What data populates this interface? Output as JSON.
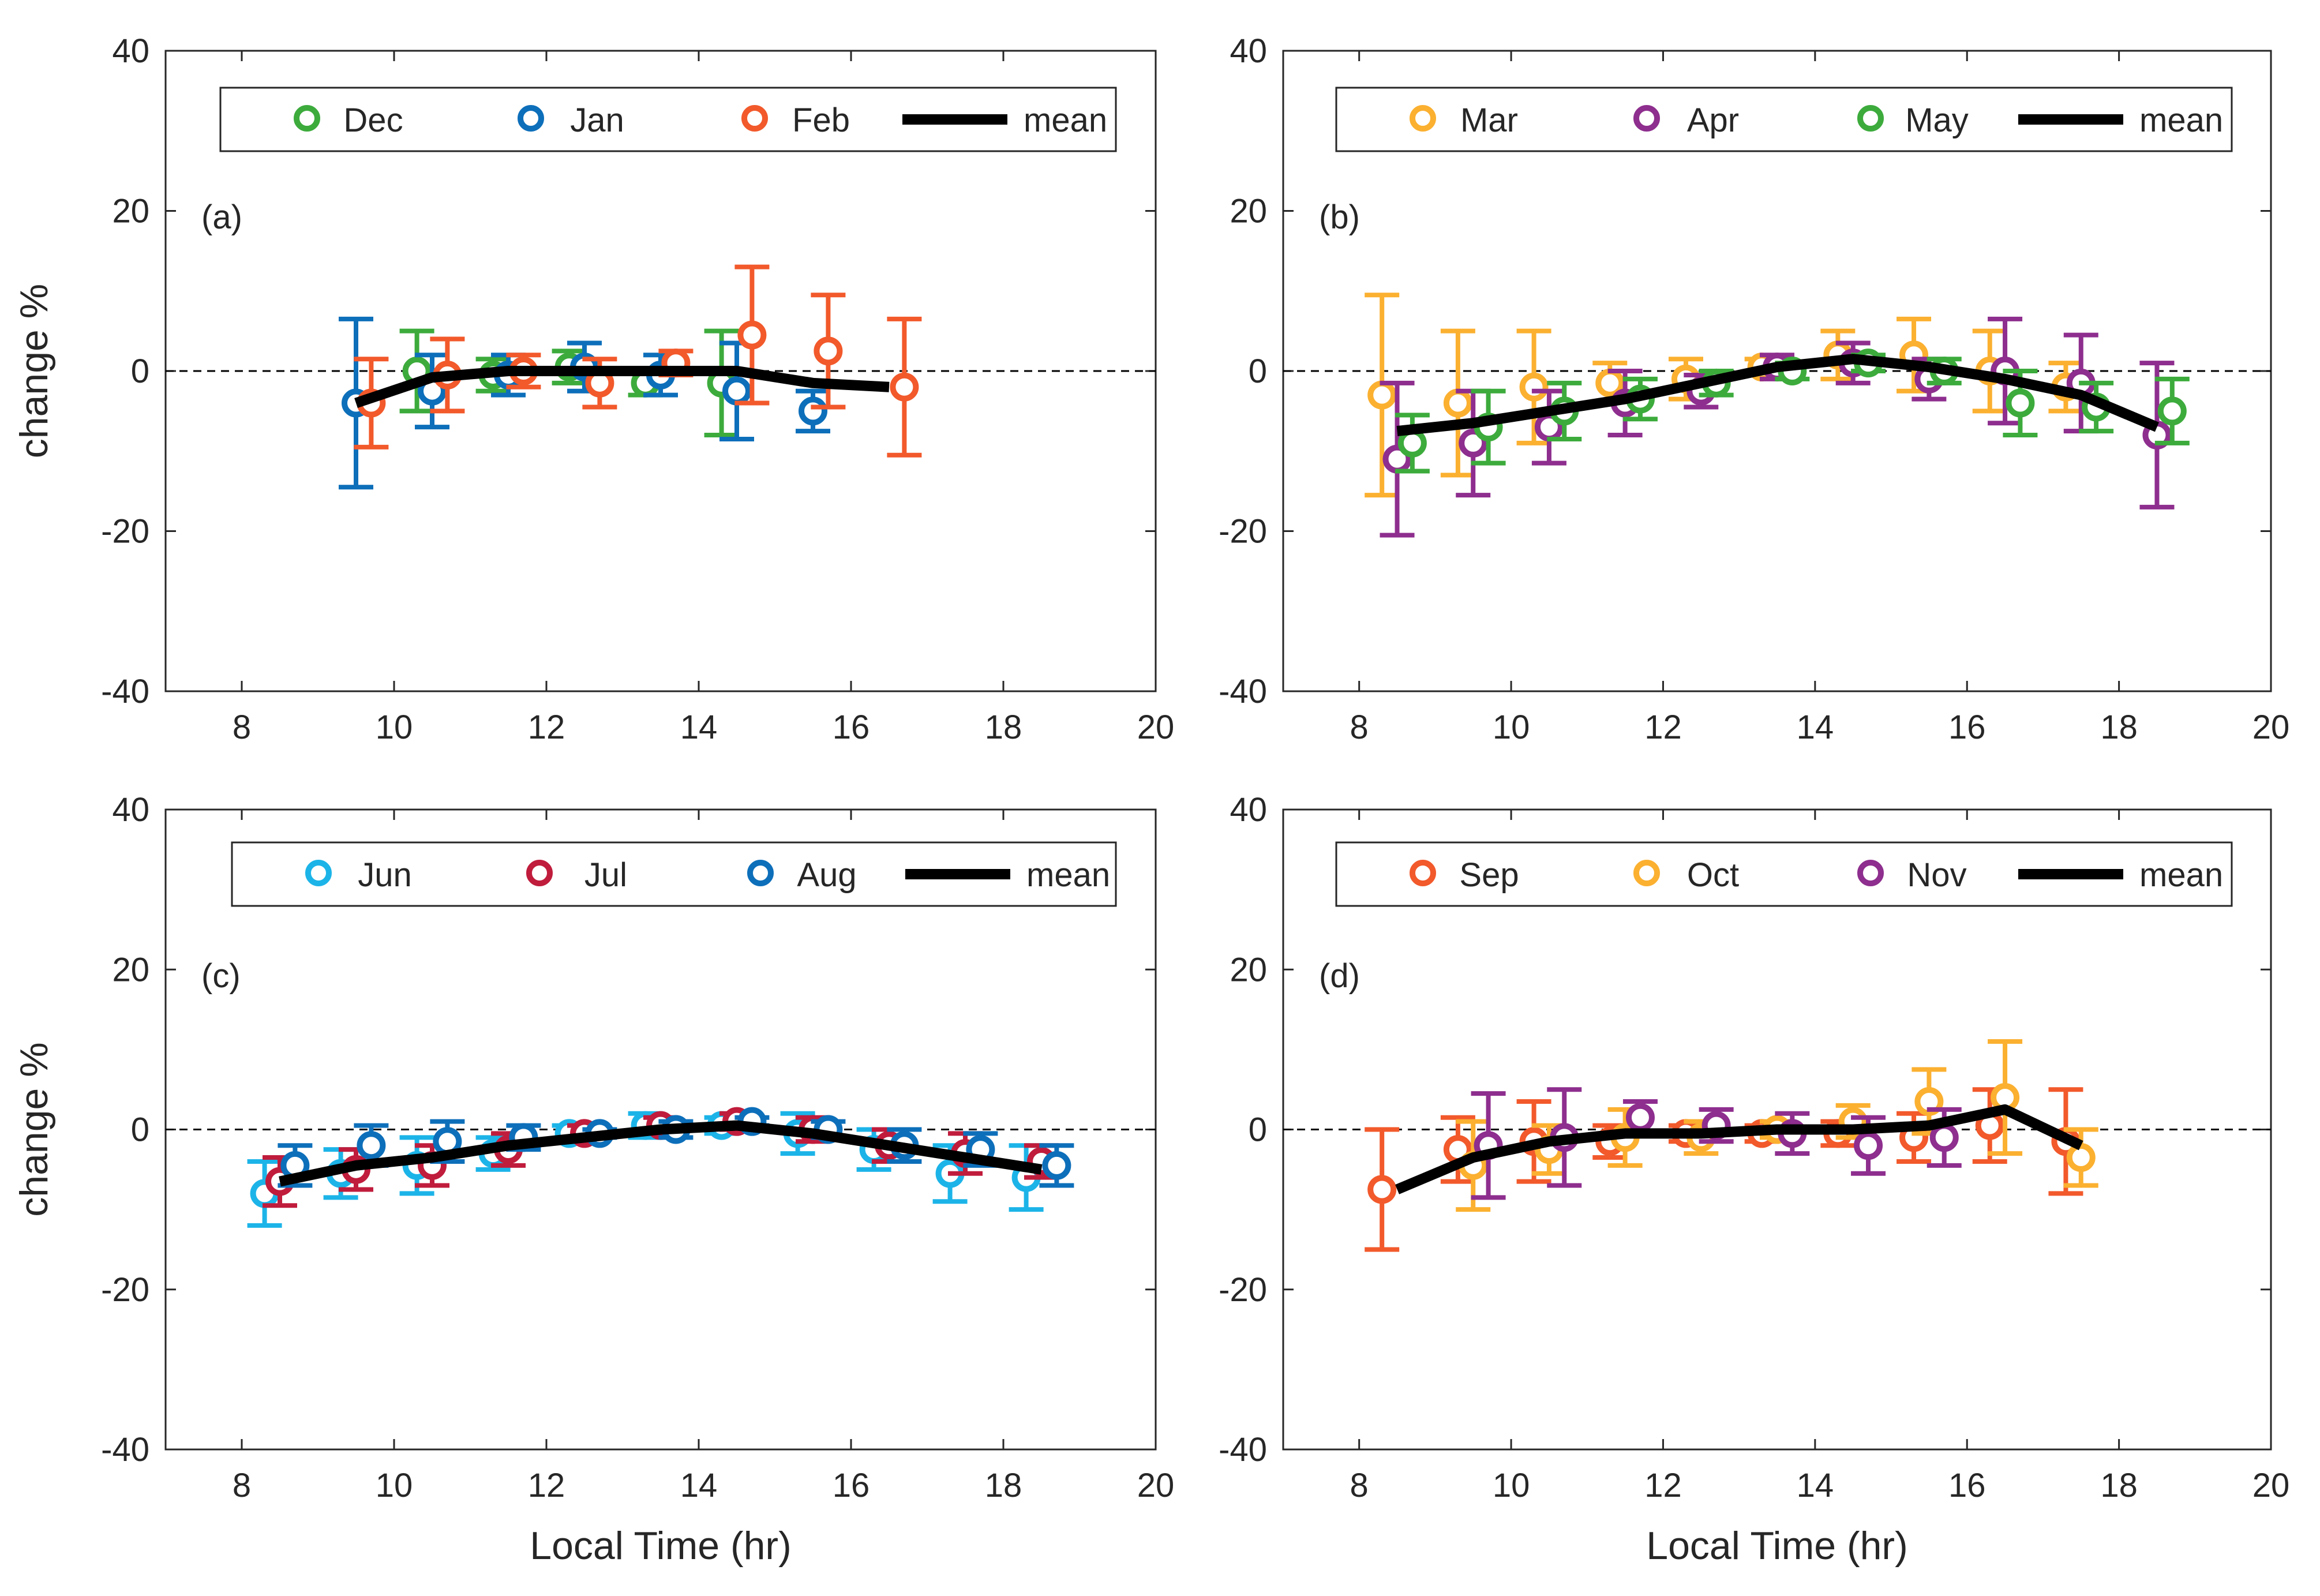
{
  "chart_data": [
    {
      "type": "scatter",
      "panel_label": "(a)",
      "xlabel": "",
      "ylabel": "change %",
      "xlim": [
        7,
        20
      ],
      "ylim": [
        -40,
        40
      ],
      "xticks": [
        "8",
        "10",
        "12",
        "14",
        "16",
        "18",
        "20"
      ],
      "yticks": [
        "40",
        "20",
        "0",
        "-20",
        "-40"
      ],
      "reference_line": 0,
      "legend": [
        "Dec",
        "Jan",
        "Feb",
        "mean"
      ],
      "series": [
        {
          "name": "Dec",
          "color": "#3cab3c",
          "x": [
            10.3,
            11.3,
            12.3,
            13.3,
            14.3
          ],
          "y": [
            0,
            -0.5,
            0.5,
            -1.5,
            -1.5
          ],
          "err": [
            5,
            2,
            2,
            1.5,
            6.5
          ]
        },
        {
          "name": "Jan",
          "color": "#0d6fba",
          "x": [
            9.5,
            10.5,
            11.5,
            12.5,
            13.5,
            14.5,
            15.5
          ],
          "y": [
            -4,
            -2.5,
            -0.5,
            0.5,
            -0.5,
            -2.5,
            -5
          ],
          "err": [
            10.5,
            4.5,
            2.5,
            3,
            2.5,
            6,
            2.5
          ]
        },
        {
          "name": "Feb",
          "color": "#f2592b",
          "x": [
            9.7,
            10.7,
            11.7,
            12.7,
            13.7,
            14.7,
            15.7,
            16.7
          ],
          "y": [
            -4,
            -0.5,
            0,
            -1.5,
            1,
            4.5,
            2.5,
            -2
          ],
          "err": [
            5.5,
            4.5,
            2,
            3,
            1.5,
            8.5,
            7,
            8.5
          ]
        },
        {
          "name": "mean",
          "color": "#000000",
          "x": [
            9.5,
            10.5,
            11.5,
            12.5,
            13.5,
            14.5,
            15.5,
            16.5
          ],
          "y": [
            -4,
            -0.8,
            0,
            0,
            0,
            0,
            -1.5,
            -2
          ]
        }
      ]
    },
    {
      "type": "scatter",
      "panel_label": "(b)",
      "xlabel": "",
      "ylabel": "",
      "xlim": [
        7,
        20
      ],
      "ylim": [
        -40,
        40
      ],
      "xticks": [
        "8",
        "10",
        "12",
        "14",
        "16",
        "18",
        "20"
      ],
      "yticks": [
        "40",
        "20",
        "0",
        "-20",
        "-40"
      ],
      "reference_line": 0,
      "legend": [
        "Mar",
        "Apr",
        "May",
        "mean"
      ],
      "series": [
        {
          "name": "Mar",
          "color": "#fbb030",
          "x": [
            8.3,
            9.3,
            10.3,
            11.3,
            12.3,
            13.3,
            14.3,
            15.3,
            16.3,
            17.3
          ],
          "y": [
            -3,
            -4,
            -2,
            -1.5,
            -1,
            0.5,
            2,
            2,
            0,
            -2
          ],
          "err": [
            12.5,
            9,
            7,
            2.5,
            2.5,
            1,
            3,
            4.5,
            5,
            3
          ]
        },
        {
          "name": "Apr",
          "color": "#8e2e8e",
          "x": [
            8.5,
            9.5,
            10.5,
            11.5,
            12.5,
            13.5,
            14.5,
            15.5,
            16.5,
            17.5,
            18.5
          ],
          "y": [
            -11,
            -9,
            -7,
            -4,
            -2.5,
            0.5,
            1,
            -1,
            0,
            -1.5,
            -8
          ],
          "err": [
            9.5,
            6.5,
            4.5,
            4,
            2,
            1.5,
            2.5,
            2.5,
            6.5,
            6,
            9
          ]
        },
        {
          "name": "May",
          "color": "#3cab3c",
          "x": [
            8.7,
            9.7,
            10.7,
            11.7,
            12.7,
            13.7,
            14.7,
            15.7,
            16.7,
            17.7,
            18.7
          ],
          "y": [
            -9,
            -7,
            -5,
            -3.5,
            -1.5,
            0,
            1,
            0,
            -4,
            -4.5,
            -5
          ],
          "err": [
            3.5,
            4.5,
            3.5,
            2.5,
            1.5,
            1,
            1,
            1.5,
            4,
            3,
            4
          ]
        },
        {
          "name": "mean",
          "color": "#000000",
          "x": [
            8.5,
            9.5,
            10.5,
            11.5,
            12.5,
            13.5,
            14.5,
            15.5,
            16.5,
            17.5,
            18.5
          ],
          "y": [
            -7.5,
            -6.5,
            -5,
            -3.5,
            -1.5,
            0.5,
            1.5,
            0.5,
            -1,
            -3,
            -7
          ]
        }
      ]
    },
    {
      "type": "scatter",
      "panel_label": "(c)",
      "xlabel": "Local Time (hr)",
      "ylabel": "change %",
      "xlim": [
        7,
        20
      ],
      "ylim": [
        -40,
        40
      ],
      "xticks": [
        "8",
        "10",
        "12",
        "14",
        "16",
        "18",
        "20"
      ],
      "yticks": [
        "40",
        "20",
        "0",
        "-20",
        "-40"
      ],
      "reference_line": 0,
      "legend": [
        "Jun",
        "Jul",
        "Aug",
        "mean"
      ],
      "series": [
        {
          "name": "Jun",
          "color": "#1cb4e8",
          "x": [
            8.3,
            9.3,
            10.3,
            11.3,
            12.3,
            13.3,
            14.3,
            15.3,
            16.3,
            17.3,
            18.3
          ],
          "y": [
            -8,
            -5.5,
            -4.5,
            -3,
            -0.5,
            0.5,
            0.5,
            -0.5,
            -2.5,
            -5.5,
            -6
          ],
          "err": [
            4,
            3,
            3.5,
            2,
            1,
            1.5,
            1,
            2.5,
            2.5,
            3.5,
            4
          ]
        },
        {
          "name": "Jul",
          "color": "#c01c3c",
          "x": [
            8.5,
            9.5,
            10.5,
            11.5,
            12.5,
            13.5,
            14.5,
            15.5,
            16.5,
            17.5,
            18.5
          ],
          "y": [
            -6.5,
            -5,
            -4.5,
            -2.5,
            -0.5,
            0.5,
            1,
            0,
            -2,
            -3,
            -4
          ],
          "err": [
            3,
            2.5,
            2.5,
            2,
            1,
            1,
            1,
            1.5,
            2,
            2.5,
            2
          ]
        },
        {
          "name": "Aug",
          "color": "#0d6fba",
          "x": [
            8.7,
            9.7,
            10.7,
            11.7,
            12.7,
            13.7,
            14.7,
            15.7,
            16.7,
            17.7,
            18.7
          ],
          "y": [
            -4.5,
            -2,
            -1.5,
            -1,
            -0.5,
            0,
            1,
            0,
            -2,
            -2.5,
            -4.5
          ],
          "err": [
            2.5,
            2.5,
            2.5,
            1.5,
            0.5,
            1,
            0.5,
            1,
            2,
            2,
            2.5
          ]
        },
        {
          "name": "mean",
          "color": "#000000",
          "x": [
            8.5,
            9.5,
            10.5,
            11.5,
            12.5,
            13.5,
            14.5,
            15.5,
            16.5,
            17.5,
            18.5
          ],
          "y": [
            -6.5,
            -4.5,
            -3.5,
            -2,
            -1,
            0,
            0.5,
            -0.5,
            -2,
            -3.5,
            -5
          ]
        }
      ]
    },
    {
      "type": "scatter",
      "panel_label": "(d)",
      "xlabel": "Local Time (hr)",
      "ylabel": "",
      "xlim": [
        7,
        20
      ],
      "ylim": [
        -40,
        40
      ],
      "xticks": [
        "8",
        "10",
        "12",
        "14",
        "16",
        "18",
        "20"
      ],
      "yticks": [
        "40",
        "20",
        "0",
        "-20",
        "-40"
      ],
      "reference_line": 0,
      "legend": [
        "Sep",
        "Oct",
        "Nov",
        "mean"
      ],
      "series": [
        {
          "name": "Sep",
          "color": "#f2592b",
          "x": [
            8.3,
            9.3,
            10.3,
            11.3,
            12.3,
            13.3,
            14.3,
            15.3,
            16.3,
            17.3
          ],
          "y": [
            -7.5,
            -2.5,
            -1.5,
            -1.5,
            -0.5,
            -0.5,
            -0.5,
            -1,
            0.5,
            -1.5
          ],
          "err": [
            7.5,
            4,
            5,
            2,
            1,
            1,
            1.5,
            3,
            4.5,
            6.5
          ]
        },
        {
          "name": "Oct",
          "color": "#fbb030",
          "x": [
            9.5,
            10.5,
            11.5,
            12.5,
            13.5,
            14.5,
            15.5,
            16.5,
            17.5
          ],
          "y": [
            -4.5,
            -2.5,
            -1,
            -1,
            0,
            1,
            3.5,
            4,
            -3.5
          ],
          "err": [
            5.5,
            3,
            3.5,
            2,
            1,
            2,
            4,
            7,
            3.5
          ]
        },
        {
          "name": "Nov",
          "color": "#8e2e8e",
          "x": [
            9.7,
            10.7,
            11.7,
            12.7,
            13.7,
            14.7,
            15.7
          ],
          "y": [
            -2,
            -1,
            1.5,
            0.5,
            -0.5,
            -2,
            -1
          ],
          "err": [
            6.5,
            6,
            2,
            2,
            2.5,
            3.5,
            3.5
          ]
        },
        {
          "name": "mean",
          "color": "#000000",
          "x": [
            8.5,
            9.5,
            10.5,
            11.5,
            12.5,
            13.5,
            14.5,
            15.5,
            16.5,
            17.5
          ],
          "y": [
            -7.5,
            -3.5,
            -1.5,
            -0.5,
            -0.5,
            0,
            0,
            0.5,
            2.5,
            -2
          ]
        }
      ]
    }
  ]
}
